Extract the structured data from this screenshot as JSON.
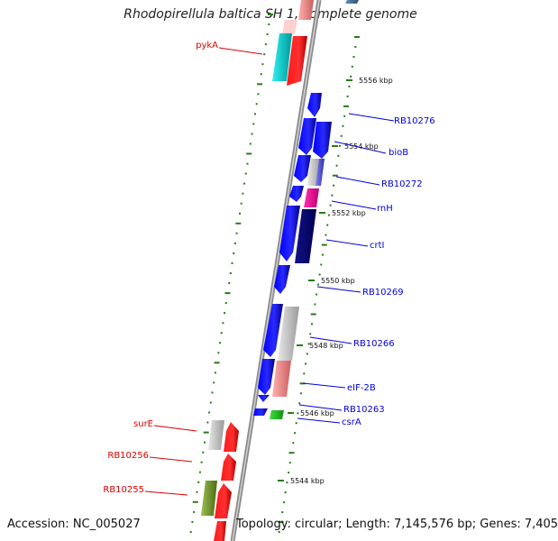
{
  "title": "Rhodopirellula baltica SH 1, complete genome",
  "footer": {
    "accession": "Accession: NC_005027",
    "stats": "Topology: circular; Length: 7,145,576 bp; Genes: 7,405"
  },
  "colors": {
    "forward_label": "#0000dd",
    "reverse_label": "#dd0000",
    "axis": "#999999",
    "tick": "#2a7a1a"
  },
  "kbp_ticks": [
    {
      "label": "5556 kbp"
    },
    {
      "label": "5554 kbp"
    },
    {
      "label": "5552 kbp"
    },
    {
      "label": "5550 kbp"
    },
    {
      "label": "5548 kbp"
    },
    {
      "label": "5546 kbp"
    },
    {
      "label": "5544 kbp"
    }
  ],
  "forward_labels": [
    {
      "name": "RB10276"
    },
    {
      "name": "bioB"
    },
    {
      "name": "RB10272"
    },
    {
      "name": "rnH"
    },
    {
      "name": "crtI"
    },
    {
      "name": "RB10269"
    },
    {
      "name": "RB10266"
    },
    {
      "name": "eIF-2B"
    },
    {
      "name": "RB10263"
    },
    {
      "name": "csrA"
    }
  ],
  "reverse_labels": [
    {
      "name": "pykA"
    },
    {
      "name": "surE"
    },
    {
      "name": "RB10256"
    },
    {
      "name": "RB10255"
    }
  ]
}
